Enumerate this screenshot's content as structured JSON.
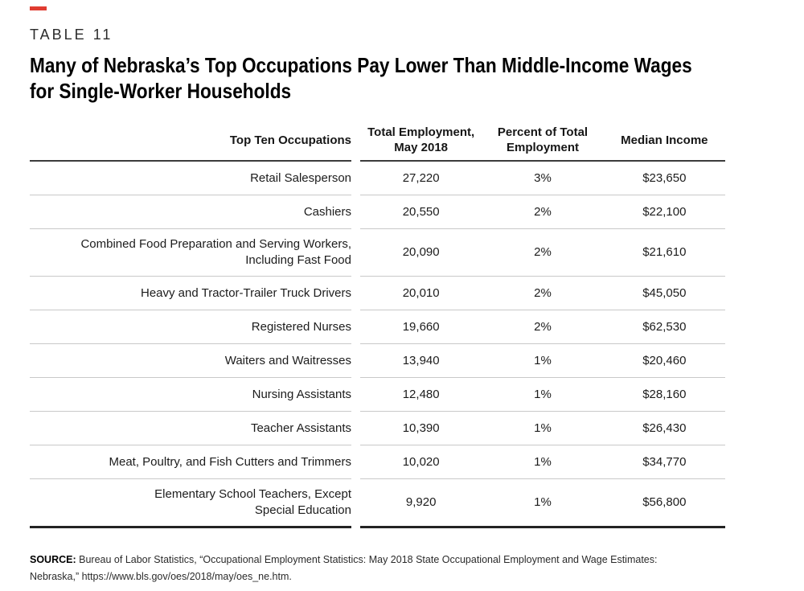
{
  "page": {
    "kicker": "TABLE 11",
    "title": "Many of Nebraska’s Top Occupations Pay Lower Than Middle-Income Wages\nfor Single-Worker Households",
    "accent_color": "#e03c31"
  },
  "table": {
    "columns": {
      "occupations": "Top Ten Occupations",
      "employment": "Total Employment,\nMay 2018",
      "percent": "Percent of Total\nEmployment",
      "income": "Median Income"
    },
    "rows": [
      {
        "occupation": "Retail Salesperson",
        "employment": "27,220",
        "percent": "3%",
        "income": "$23,650"
      },
      {
        "occupation": "Cashiers",
        "employment": "20,550",
        "percent": "2%",
        "income": "$22,100"
      },
      {
        "occupation": "Combined Food Preparation and Serving Workers,\nIncluding Fast Food",
        "employment": "20,090",
        "percent": "2%",
        "income": "$21,610"
      },
      {
        "occupation": "Heavy and Tractor-Trailer Truck Drivers",
        "employment": "20,010",
        "percent": "2%",
        "income": "$45,050"
      },
      {
        "occupation": "Registered Nurses",
        "employment": "19,660",
        "percent": "2%",
        "income": "$62,530"
      },
      {
        "occupation": "Waiters and Waitresses",
        "employment": "13,940",
        "percent": "1%",
        "income": "$20,460"
      },
      {
        "occupation": "Nursing Assistants",
        "employment": "12,480",
        "percent": "1%",
        "income": "$28,160"
      },
      {
        "occupation": "Teacher Assistants",
        "employment": "10,390",
        "percent": "1%",
        "income": "$26,430"
      },
      {
        "occupation": "Meat, Poultry, and Fish Cutters and Trimmers",
        "employment": "10,020",
        "percent": "1%",
        "income": "$34,770"
      },
      {
        "occupation": "Elementary School Teachers, Except\nSpecial Education",
        "employment": "9,920",
        "percent": "1%",
        "income": "$56,800"
      }
    ]
  },
  "source": {
    "label": "SOURCE:",
    "line1": "Bureau of Labor Statistics, “Occupational Employment Statistics: May 2018 State Occupational Employment and Wage Estimates:",
    "line2": "Nebraska,” https://www.bls.gov/oes/2018/may/oes_ne.htm."
  }
}
